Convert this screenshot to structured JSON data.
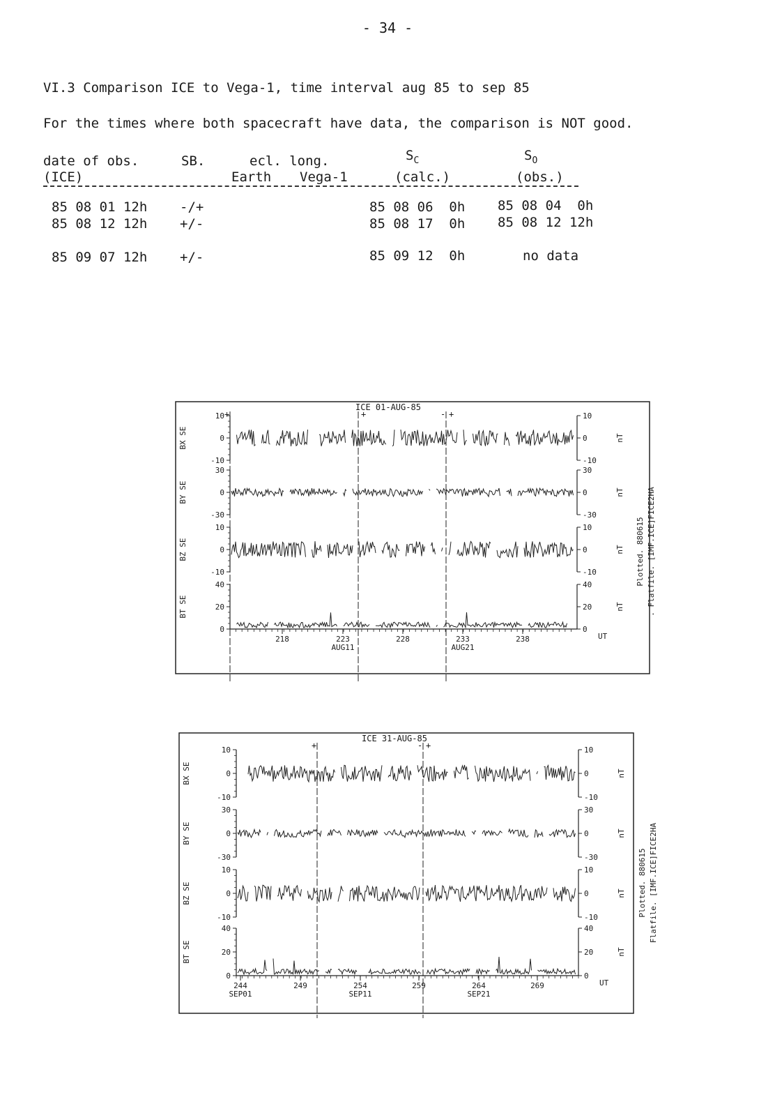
{
  "page": {
    "number": "- 34 -",
    "section_title": "VI.3 Comparison ICE to Vega-1, time interval aug 85 to sep 85",
    "intro": "For the times where both spacecraft have data, the comparison is NOT good."
  },
  "table": {
    "headers": {
      "date": "date of obs.",
      "date_sub": "(ICE)",
      "sb": "SB.",
      "ecl": "ecl. long.",
      "earth": "Earth",
      "vega": "Vega-1",
      "sc": "S",
      "sc_sub": "C",
      "sc_note": "(calc.)",
      "so": "S",
      "so_sub": "O",
      "so_note": "(obs.)"
    },
    "rows": [
      {
        "date": "85 08 01 12h",
        "sb": "-/+",
        "sc": "85 08 06  0h",
        "so": "85 08 04  0h"
      },
      {
        "date": "85 08 12 12h",
        "sb": "+/-",
        "sc": "85 08 17  0h",
        "so": "85 08 12 12h"
      },
      {
        "date": "85 09 07 12h",
        "sb": "+/-",
        "sc": "85 09 12  0h",
        "so": "no data"
      }
    ]
  },
  "plots": [
    {
      "title": "ICE  01-AUG-85",
      "panels": [
        {
          "label": "BX  SE",
          "ticks": [
            "10",
            "0",
            "-10"
          ],
          "right": [
            "10",
            "0",
            "-10"
          ],
          "unit": "nT"
        },
        {
          "label": "BY  SE",
          "ticks": [
            "30",
            "0",
            "-30"
          ],
          "right": [
            "30",
            "0",
            "-30"
          ],
          "unit": "nT"
        },
        {
          "label": "BZ  SE",
          "ticks": [
            "10",
            "0",
            "-10"
          ],
          "right": [
            "10",
            "0",
            "-10"
          ],
          "unit": "nT"
        },
        {
          "label": "BT  SE",
          "ticks": [
            "40",
            "20",
            "0"
          ],
          "right": [
            "40",
            "20",
            "0"
          ],
          "unit": "nT"
        }
      ],
      "xticks": [
        "218",
        "223",
        "228",
        "233",
        "238"
      ],
      "xsub": [
        "",
        "AUG11",
        "",
        "AUG21",
        ""
      ],
      "xunit": "UT",
      "side": [
        "Plotted. 880615",
        ". Flatfile. [IMF.ICE]FICE2HA"
      ],
      "sb_marks": [
        "+",
        "+",
        "-",
        "+"
      ]
    },
    {
      "title": "ICE  31-AUG-85",
      "panels": [
        {
          "label": "BX  SE",
          "ticks": [
            "10",
            "0",
            "-10"
          ],
          "right": [
            "10",
            "0",
            "-10"
          ],
          "unit": "nT"
        },
        {
          "label": "BY  SE",
          "ticks": [
            "30",
            "0",
            "-30"
          ],
          "right": [
            "30",
            "0",
            "-30"
          ],
          "unit": "nT"
        },
        {
          "label": "BZ  SE",
          "ticks": [
            "10",
            "0",
            "-10"
          ],
          "right": [
            "10",
            "0",
            "-10"
          ],
          "unit": "nT"
        },
        {
          "label": "BT  SE",
          "ticks": [
            "40",
            "20",
            "0"
          ],
          "right": [
            "40",
            "20",
            "0"
          ],
          "unit": "nT"
        }
      ],
      "xticks": [
        "244",
        "249",
        "254",
        "259",
        "264",
        "269"
      ],
      "xsub": [
        "SEP01",
        "",
        "SEP11",
        "",
        "SEP21",
        ""
      ],
      "xunit": "UT",
      "side": [
        "Plotted. 880615",
        "Flatfile. [IMF.ICE]FICE2HA"
      ],
      "sb_marks": [
        "+",
        "-",
        "-",
        "+"
      ]
    }
  ]
}
